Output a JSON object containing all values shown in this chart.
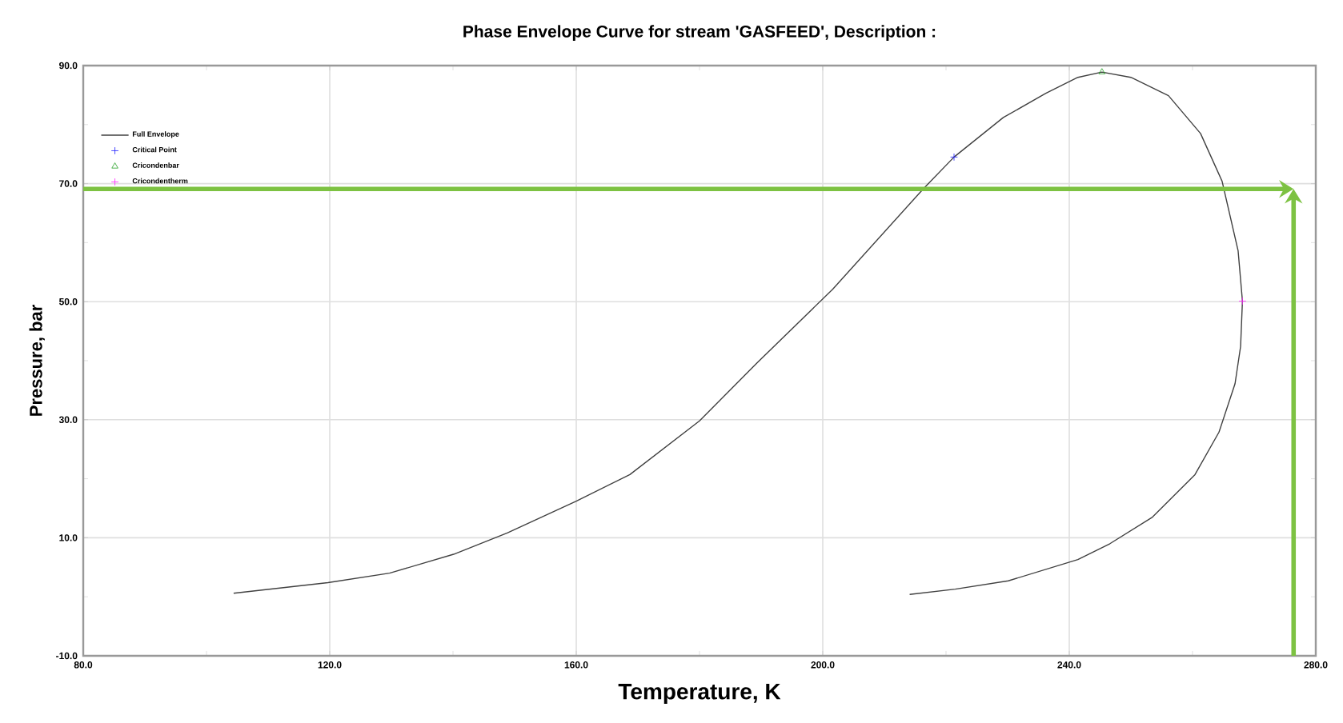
{
  "chart_data": {
    "type": "line",
    "title": "Phase Envelope Curve for stream 'GASFEED', Description :",
    "xlabel": "Temperature, K",
    "ylabel": "Pressure, bar",
    "xlim": [
      80,
      280
    ],
    "ylim": [
      -10,
      90
    ],
    "xticks": [
      {
        "value": 80,
        "label": "80.0"
      },
      {
        "value": 100,
        "label": null
      },
      {
        "value": 120,
        "label": "120.0"
      },
      {
        "value": 140,
        "label": null
      },
      {
        "value": 160,
        "label": "160.0"
      },
      {
        "value": 180,
        "label": null
      },
      {
        "value": 200,
        "label": "200.0"
      },
      {
        "value": 220,
        "label": null
      },
      {
        "value": 240,
        "label": "240.0"
      },
      {
        "value": 260,
        "label": null
      },
      {
        "value": 280,
        "label": "280.0"
      }
    ],
    "yticks": [
      {
        "value": -10,
        "label": "-10.0"
      },
      {
        "value": 0,
        "label": null
      },
      {
        "value": 10,
        "label": "10.0"
      },
      {
        "value": 20,
        "label": null
      },
      {
        "value": 30,
        "label": "30.0"
      },
      {
        "value": 40,
        "label": null
      },
      {
        "value": 50,
        "label": "50.0"
      },
      {
        "value": 60,
        "label": null
      },
      {
        "value": 70,
        "label": "70.0"
      },
      {
        "value": 80,
        "label": null
      },
      {
        "value": 90,
        "label": "90.0"
      }
    ],
    "grid": true,
    "legend": "top left",
    "series": [
      {
        "name": "Full Envelope",
        "type": "line",
        "marker": "none",
        "color": "#404040",
        "x": [
          104.4,
          119.7,
          129.7,
          140.1,
          148.8,
          160.0,
          168.7,
          180.0,
          189.4,
          201.6,
          216.3,
          221.3,
          229.3,
          236.2,
          241.4,
          245.3,
          250.0,
          256.1,
          261.3,
          264.8,
          267.4,
          268.1,
          267.8,
          266.9,
          264.3,
          260.4,
          253.5,
          246.6,
          241.4,
          230.1,
          221.5,
          214.1
        ],
        "values": [
          0.6,
          2.4,
          4.0,
          7.2,
          10.8,
          16.2,
          20.7,
          29.8,
          39.7,
          52.1,
          69.1,
          74.5,
          81.2,
          85.3,
          88.0,
          88.9,
          88.0,
          84.9,
          78.5,
          70.4,
          58.6,
          50.1,
          42.4,
          36.1,
          27.9,
          20.7,
          13.5,
          9.0,
          6.3,
          2.7,
          1.3,
          0.4
        ]
      },
      {
        "name": "Critical Point",
        "type": "scatter",
        "marker": "cross",
        "color": "#2020ff",
        "x": [
          221.3
        ],
        "values": [
          74.5
        ]
      },
      {
        "name": "Cricondenbar",
        "type": "scatter",
        "marker": "triangle",
        "color": "#22a022",
        "x": [
          245.3
        ],
        "values": [
          88.9
        ]
      },
      {
        "name": "Cricondentherm",
        "type": "scatter",
        "marker": "cross",
        "color": "#ff22ff",
        "x": [
          268.1
        ],
        "values": [
          50.1
        ]
      }
    ],
    "ref_lines": [
      {
        "axis": "y",
        "value": 69.1,
        "color": "#7dc242"
      },
      {
        "axis": "x",
        "value": 276.4,
        "color": "#7dc242"
      }
    ]
  }
}
